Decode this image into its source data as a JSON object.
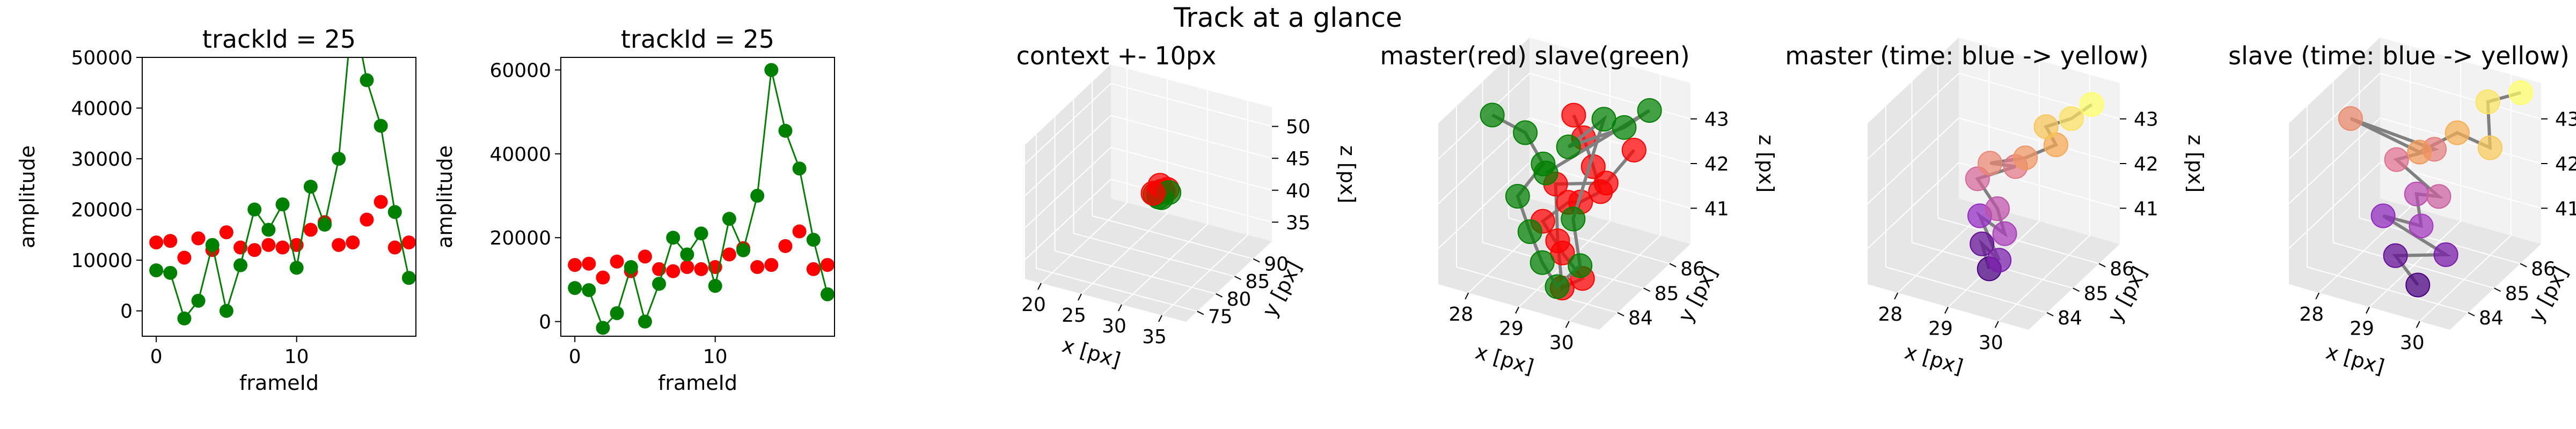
{
  "figure": {
    "suptitle": "Track at a glance"
  },
  "colors": {
    "master": "#ff0000",
    "slave": "#008000",
    "connector": "#808080",
    "pane": "#f2f2f2",
    "pane_side": "#e6e6e6",
    "grid": "#ffffff",
    "time_start": "#4b0082",
    "time_end": "#ffff66"
  },
  "chart_data": [
    {
      "type": "line",
      "title": "trackId = 25",
      "xlabel": "frameId",
      "ylabel": "amplitude",
      "xlim": [
        -1,
        18.5
      ],
      "ylim": [
        -5000,
        50000
      ],
      "xticks": [
        0,
        10
      ],
      "yticks": [
        0,
        10000,
        20000,
        30000,
        40000,
        50000
      ],
      "x": [
        0,
        1,
        2,
        3,
        4,
        5,
        6,
        7,
        8,
        9,
        10,
        11,
        12,
        13,
        14,
        15,
        16,
        17,
        18
      ],
      "series": [
        {
          "color": "red",
          "connected": false,
          "values": [
            13500,
            13800,
            10500,
            14300,
            12000,
            15500,
            12500,
            12000,
            13000,
            12500,
            13000,
            16000,
            17500,
            13000,
            13500,
            18000,
            21500,
            12500,
            13500
          ]
        },
        {
          "color": "green",
          "connected": true,
          "values": [
            8000,
            7500,
            -1500,
            2000,
            13000,
            0,
            9000,
            20000,
            16000,
            21000,
            8500,
            24500,
            17000,
            30000,
            60000,
            45500,
            36500,
            19500,
            6500
          ]
        }
      ]
    },
    {
      "type": "line",
      "title": "trackId = 25",
      "xlabel": "frameId",
      "ylabel": "amplitude",
      "xlim": [
        -1,
        18.5
      ],
      "ylim": [
        -3500,
        63000
      ],
      "xticks": [
        0,
        10
      ],
      "yticks": [
        0,
        20000,
        40000,
        60000
      ],
      "x": [
        0,
        1,
        2,
        3,
        4,
        5,
        6,
        7,
        8,
        9,
        10,
        11,
        12,
        13,
        14,
        15,
        16,
        17,
        18
      ],
      "series": [
        {
          "color": "red",
          "connected": false,
          "values": [
            13500,
            13800,
            10500,
            14300,
            12000,
            15500,
            12500,
            12000,
            13000,
            12500,
            13000,
            16000,
            17500,
            13000,
            13500,
            18000,
            21500,
            12500,
            13500
          ]
        },
        {
          "color": "green",
          "connected": true,
          "values": [
            8000,
            7500,
            -1500,
            2000,
            13000,
            0,
            9000,
            20000,
            16000,
            21000,
            8500,
            24500,
            17000,
            30000,
            60000,
            45500,
            36500,
            19500,
            6500
          ]
        }
      ]
    },
    {
      "type": "scatter",
      "title": "context +- 10px",
      "xlabel": "x [px]",
      "ylabel": "y [px]",
      "zlabel": "z [px]",
      "xlim": [
        18,
        38
      ],
      "ylim": [
        72,
        95
      ],
      "zlim": [
        32,
        53
      ],
      "xticks": [
        20,
        25,
        30,
        35
      ],
      "yticks": [
        75,
        80,
        85,
        90
      ],
      "zticks": [
        35,
        40,
        45,
        50
      ],
      "coloring": "master-slave",
      "points": [
        [
          28.3,
          84.6,
          41.8
        ],
        [
          28.6,
          85.0,
          42.0
        ],
        [
          28.9,
          85.2,
          42.2
        ],
        [
          29.2,
          84.9,
          42.4
        ],
        [
          28.8,
          84.5,
          41.6
        ],
        [
          29.5,
          85.3,
          42.6
        ],
        [
          29.0,
          84.8,
          41.4
        ],
        [
          28.5,
          85.5,
          42.8
        ],
        [
          29.8,
          85.1,
          42.3
        ],
        [
          28.2,
          84.3,
          42.1
        ]
      ]
    },
    {
      "type": "scatter",
      "title": "master(red) slave(green)",
      "xlabel": "x [px]",
      "ylabel": "y [px]",
      "zlabel": "z [px]",
      "xlim": [
        27.4,
        30.6
      ],
      "ylim": [
        83.3,
        86.8
      ],
      "zlim": [
        40.2,
        43.8
      ],
      "xticks": [
        28,
        29,
        30
      ],
      "yticks": [
        84,
        85,
        86
      ],
      "zticks": [
        41,
        42,
        43
      ],
      "coloring": "master-slave",
      "master": [
        [
          28.9,
          85.6,
          43.2
        ],
        [
          29.2,
          85.4,
          42.9
        ],
        [
          29.6,
          85.0,
          42.6
        ],
        [
          29.9,
          84.7,
          42.3
        ],
        [
          29.4,
          84.9,
          41.8
        ],
        [
          29.0,
          85.2,
          41.5
        ],
        [
          28.7,
          84.8,
          41.2
        ],
        [
          29.3,
          84.4,
          40.9
        ],
        [
          29.8,
          84.2,
          40.6
        ],
        [
          29.5,
          84.0,
          40.4
        ],
        [
          29.1,
          84.6,
          41.0
        ],
        [
          28.8,
          85.1,
          41.9
        ],
        [
          29.7,
          85.3,
          42.1
        ],
        [
          30.1,
          85.6,
          42.8
        ]
      ],
      "slave": [
        [
          27.8,
          84.6,
          43.4
        ],
        [
          28.3,
          84.9,
          43.0
        ],
        [
          28.5,
          85.2,
          42.2
        ],
        [
          28.2,
          84.8,
          41.6
        ],
        [
          28.6,
          84.5,
          41.1
        ],
        [
          29.0,
          84.2,
          40.7
        ],
        [
          29.4,
          84.0,
          40.4
        ],
        [
          29.7,
          84.3,
          40.8
        ],
        [
          29.2,
          85.0,
          41.3
        ],
        [
          29.5,
          85.6,
          43.3
        ],
        [
          28.9,
          85.4,
          42.6
        ],
        [
          29.8,
          85.8,
          43.1
        ],
        [
          30.2,
          86.0,
          43.5
        ],
        [
          28.4,
          85.5,
          41.8
        ]
      ]
    },
    {
      "type": "scatter",
      "title": "master (time: blue -> yellow)",
      "xlabel": "x [px]",
      "ylabel": "y [px]",
      "zlabel": "z [px]",
      "xlim": [
        27.4,
        30.6
      ],
      "ylim": [
        83.3,
        86.8
      ],
      "zlim": [
        40.2,
        43.8
      ],
      "xticks": [
        28,
        29,
        30
      ],
      "yticks": [
        84,
        85,
        86
      ],
      "zticks": [
        41,
        42,
        43
      ],
      "coloring": "time",
      "points": [
        [
          29.3,
          84.3,
          40.6
        ],
        [
          29.0,
          84.6,
          40.9
        ],
        [
          29.6,
          84.1,
          41.0
        ],
        [
          28.8,
          84.9,
          41.3
        ],
        [
          29.4,
          84.7,
          41.2
        ],
        [
          29.1,
          85.0,
          41.5
        ],
        [
          28.6,
          85.2,
          41.9
        ],
        [
          29.2,
          85.5,
          42.2
        ],
        [
          28.9,
          85.1,
          42.4
        ],
        [
          29.5,
          85.3,
          42.6
        ],
        [
          29.9,
          85.7,
          42.8
        ],
        [
          29.6,
          85.9,
          43.0
        ],
        [
          30.0,
          86.1,
          43.2
        ],
        [
          30.3,
          86.3,
          43.5
        ]
      ]
    },
    {
      "type": "scatter",
      "title": "slave (time: blue -> yellow)",
      "xlabel": "x [px]",
      "ylabel": "y [px]",
      "zlabel": "z [px]",
      "xlim": [
        27.4,
        30.6
      ],
      "ylim": [
        83.3,
        86.8
      ],
      "zlim": [
        40.2,
        43.8
      ],
      "xticks": [
        28,
        29,
        30
      ],
      "yticks": [
        84,
        85,
        86
      ],
      "zticks": [
        41,
        42,
        43
      ],
      "coloring": "time",
      "points": [
        [
          29.6,
          84.0,
          40.5
        ],
        [
          29.0,
          84.3,
          40.8
        ],
        [
          29.9,
          84.5,
          41.0
        ],
        [
          28.6,
          84.6,
          41.4
        ],
        [
          29.2,
          84.9,
          41.2
        ],
        [
          28.9,
          85.3,
          41.6
        ],
        [
          29.5,
          85.0,
          41.9
        ],
        [
          28.4,
          85.5,
          42.1
        ],
        [
          29.1,
          85.6,
          42.5
        ],
        [
          27.9,
          84.7,
          43.3
        ],
        [
          28.7,
          85.8,
          42.2
        ],
        [
          29.4,
          85.9,
          42.8
        ],
        [
          30.0,
          86.0,
          42.6
        ],
        [
          29.8,
          86.3,
          43.4
        ],
        [
          30.3,
          86.6,
          43.6
        ]
      ]
    }
  ]
}
